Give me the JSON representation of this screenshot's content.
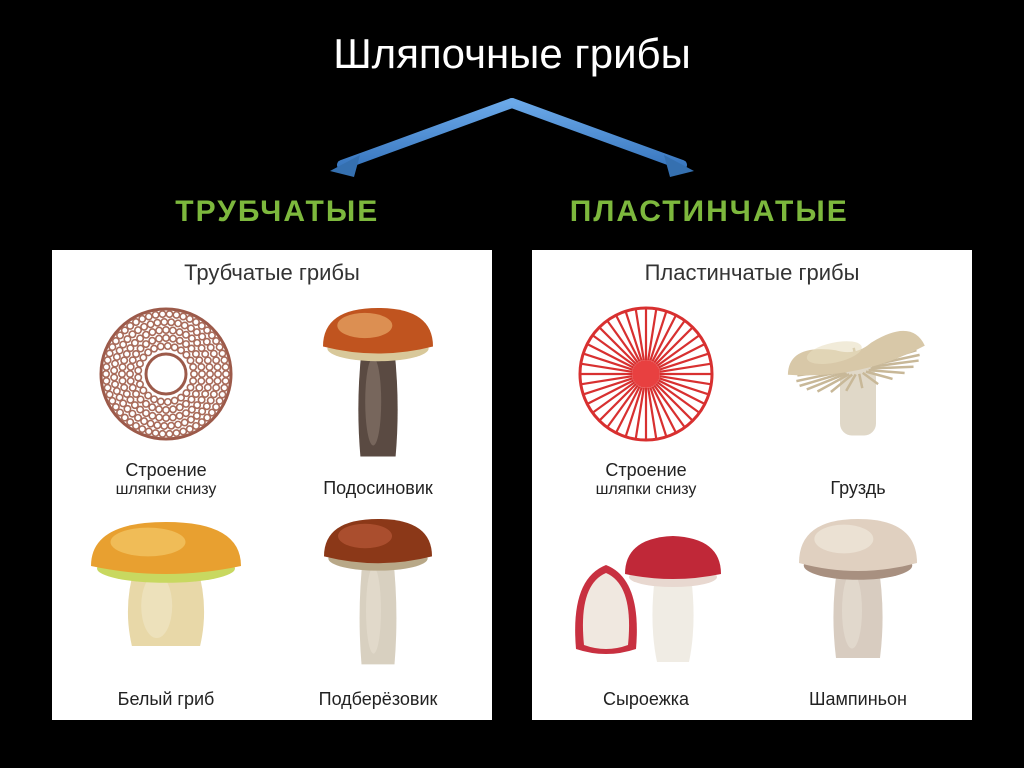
{
  "title": "Шляпочные грибы",
  "arrow_color": "#4a8fd8",
  "arrow_head_color": "#3570b0",
  "categories": {
    "left": "ТРУБЧАТЫЕ",
    "right": "ПЛАСТИНЧАТЫЕ",
    "label_color": "#7db83d"
  },
  "panels": {
    "left": {
      "title": "Трубчатые грибы",
      "cells": [
        {
          "type": "diagram-tubular",
          "label": "Строение",
          "sublabel": "шляпки снизу",
          "ring_color": "#9c5a4a",
          "dot_color": "#a86b5a"
        },
        {
          "type": "mushroom",
          "label": "Подосиновик",
          "cap_color": "#c0541f",
          "cap_highlight": "#e8a868",
          "stem_color": "#5a4a42",
          "stem_light": "#8b7a6e",
          "underside": "#d8c89a"
        },
        {
          "type": "mushroom",
          "label": "Белый гриб",
          "cap_color": "#e8a030",
          "cap_highlight": "#f4c868",
          "stem_color": "#e8d8a8",
          "stem_light": "#f0e8c8",
          "underside": "#c8d860"
        },
        {
          "type": "mushroom",
          "label": "Подберёзовик",
          "cap_color": "#8b3818",
          "cap_highlight": "#b85838",
          "stem_color": "#d8d0c0",
          "stem_light": "#e8e0d0",
          "underside": "#b8a888"
        }
      ]
    },
    "right": {
      "title": "Пластинчатые грибы",
      "cells": [
        {
          "type": "diagram-gilled",
          "label": "Строение",
          "sublabel": "шляпки снизу",
          "line_color": "#d83030",
          "center_color": "#e84040"
        },
        {
          "type": "mushroom-gilled",
          "label": "Груздь",
          "cap_color": "#d8c8a8",
          "cap_highlight": "#e8ddc0",
          "stem_color": "#e0d8c8",
          "gill_color": "#c8b898"
        },
        {
          "type": "russula",
          "label": "Сыроежка",
          "cap_color": "#c02838",
          "stem_color": "#f0ece4",
          "gill_color": "#e8d8d0",
          "slice_outer": "#c83040",
          "slice_inner": "#f0e8e0"
        },
        {
          "type": "mushroom",
          "label": "Шампиньон",
          "cap_color": "#e0d0c0",
          "cap_highlight": "#f0e8dc",
          "stem_color": "#d8ccc0",
          "stem_light": "#e8e0d4",
          "underside": "#a89080"
        }
      ]
    }
  }
}
